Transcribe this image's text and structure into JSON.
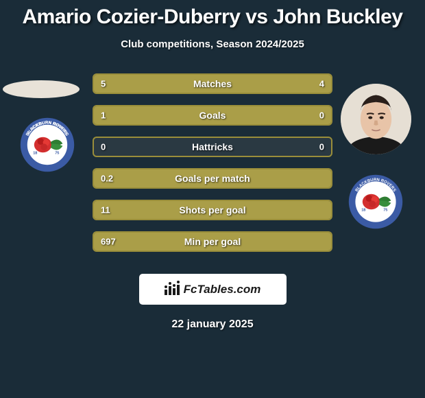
{
  "title": "Amario Cozier-Duberry vs John Buckley",
  "subtitle": "Club competitions, Season 2024/2025",
  "player1": {
    "name": "Amario Cozier-Duberry",
    "club": "Blackburn Rovers"
  },
  "player2": {
    "name": "John Buckley",
    "club": "Blackburn Rovers"
  },
  "stats": {
    "type": "comparison-bars",
    "bar_fill_color": "#aa9e48",
    "bar_border_color": "#9a8e3a",
    "bar_bg_color": "#2a3942",
    "text_color": "#ffffff",
    "rows": [
      {
        "label": "Matches",
        "left": "5",
        "right": "4",
        "left_pct": 55.6,
        "right_pct": 44.4
      },
      {
        "label": "Goals",
        "left": "1",
        "right": "0",
        "left_pct": 100,
        "right_pct": 0
      },
      {
        "label": "Hattricks",
        "left": "0",
        "right": "0",
        "left_pct": 0,
        "right_pct": 0
      },
      {
        "label": "Goals per match",
        "left": "0.2",
        "right": "",
        "left_pct": 100,
        "right_pct": 0
      },
      {
        "label": "Shots per goal",
        "left": "11",
        "right": "",
        "left_pct": 100,
        "right_pct": 0
      },
      {
        "label": "Min per goal",
        "left": "697",
        "right": "",
        "left_pct": 100,
        "right_pct": 0
      }
    ]
  },
  "attribution": "FcTables.com",
  "date": "22 january 2025",
  "colors": {
    "background": "#1a2c38",
    "title": "#ffffff",
    "attribution_bg": "#ffffff",
    "attribution_text": "#1a1a1a"
  },
  "club_badge": {
    "outer_ring": "#3b5ba5",
    "inner_bg": "#ffffff",
    "rose_red": "#d32f2f",
    "leaf_green": "#2e7d32",
    "text": "BLACKBURN ROVERS",
    "motto": "ARTE ET LABORE",
    "year": "1875"
  }
}
